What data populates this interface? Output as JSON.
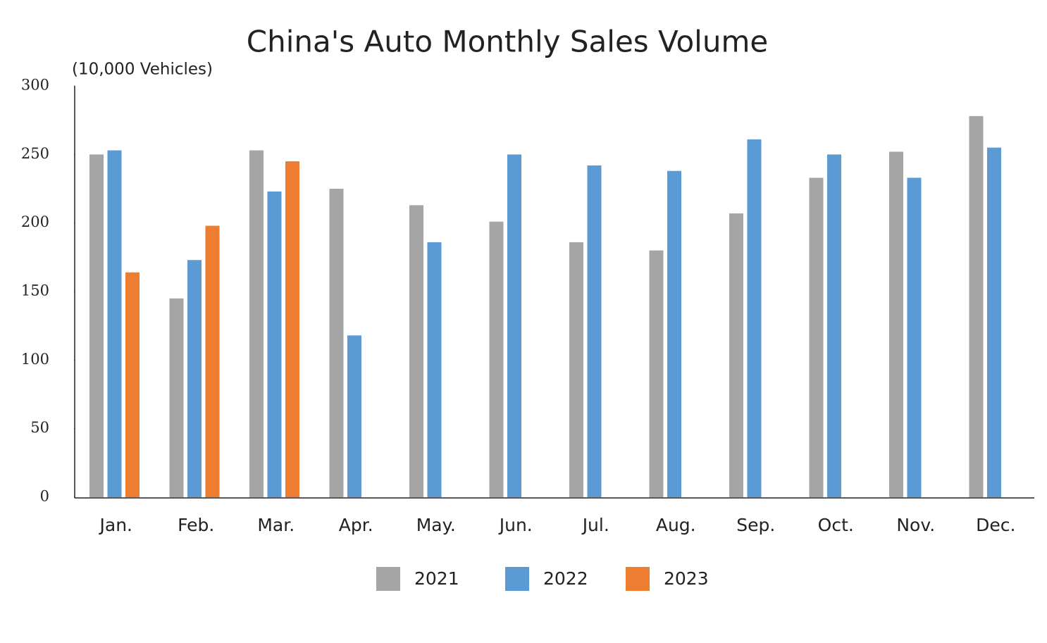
{
  "chart_data": {
    "type": "bar",
    "title": "China's Auto Monthly Sales Volume",
    "y_label": "(10,000 Vehicles)",
    "categories": [
      "Jan.",
      "Feb.",
      "Mar.",
      "Apr.",
      "May.",
      "Jun.",
      "Jul.",
      "Aug.",
      "Sep.",
      "Oct.",
      "Nov.",
      "Dec."
    ],
    "series": [
      {
        "name": "2021",
        "color": "#a5a5a5",
        "values": [
          250,
          145,
          253,
          225,
          213,
          201,
          186,
          180,
          207,
          233,
          252,
          278
        ]
      },
      {
        "name": "2022",
        "color": "#5b9bd5",
        "values": [
          253,
          173,
          223,
          118,
          186,
          250,
          242,
          238,
          261,
          250,
          233,
          255
        ]
      },
      {
        "name": "2023",
        "color": "#ed7d31",
        "values": [
          164,
          198,
          245,
          null,
          null,
          null,
          null,
          null,
          null,
          null,
          null,
          null
        ]
      }
    ],
    "ylim": [
      0,
      300
    ],
    "yticks": [
      0,
      50,
      100,
      150,
      200,
      250,
      300
    ],
    "grid": false,
    "legend": "bottom"
  }
}
